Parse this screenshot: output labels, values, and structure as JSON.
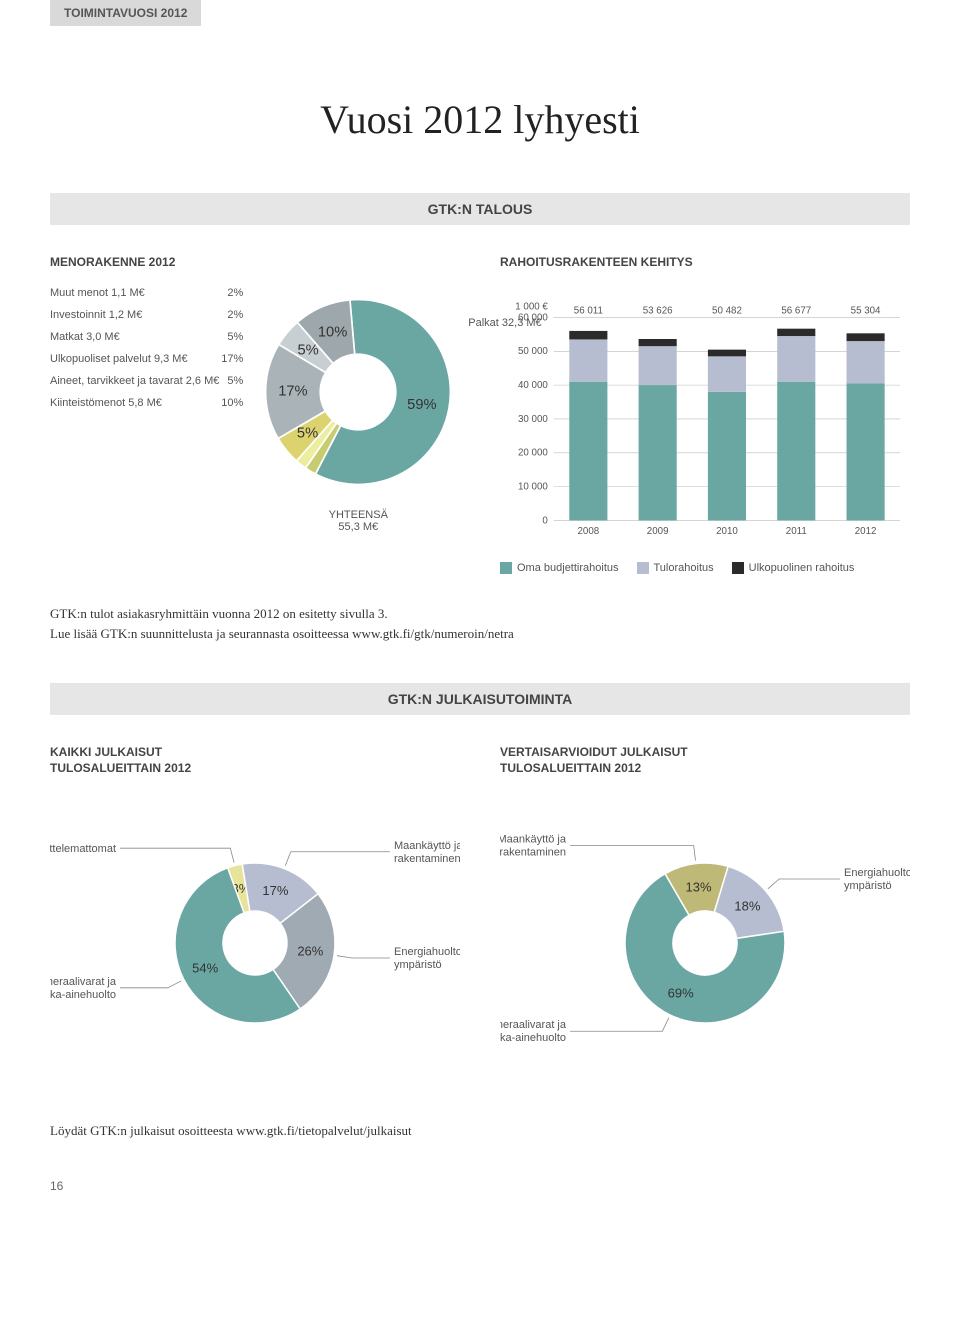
{
  "header_tab": "TOIMINTAVUOSI 2012",
  "title": "Vuosi 2012 lyhyesti",
  "section1_band": "GTK:N TALOUS",
  "menorakenne": {
    "heading": "MENORAKENNE 2012",
    "type": "pie",
    "items": [
      {
        "label": "Muut menot 1,1 M€",
        "pct": "2%",
        "color": "#c7cc70",
        "value": 2
      },
      {
        "label": "Investoinnit 1,2 M€",
        "pct": "2%",
        "color": "#eced9f",
        "value": 2
      },
      {
        "label": "Matkat 3,0 M€",
        "pct": "5%",
        "color": "#dcd36f",
        "value": 5
      },
      {
        "label": "Ulkopuoliset palvelut 9,3 M€",
        "pct": "17%",
        "color": "#aab4b8",
        "value": 17
      },
      {
        "label": "Aineet, tarvikkeet ja tavarat 2,6 M€",
        "pct": "5%",
        "color": "#c8cfd2",
        "value": 5
      },
      {
        "label": "Kiinteistömenot 5,8 M€",
        "pct": "10%",
        "color": "#9ea8ac",
        "value": 10
      }
    ],
    "main_slice": {
      "label": "Palkat 32,3 M€",
      "pct": "59%",
      "color": "#6aa6a2",
      "value": 59
    },
    "total_label": "YHTEENSÄ",
    "total_value": "55,3 M€",
    "background": "#ffffff"
  },
  "rahoitus": {
    "heading": "RAHOITUSRAKENTEEN KEHITYS",
    "type": "stacked-bar",
    "y_unit": "1 000 €",
    "ylim": [
      0,
      60000
    ],
    "ytick_step": 10000,
    "yticks": [
      "0",
      "10 000",
      "20 000",
      "30 000",
      "40 000",
      "50 000",
      "60 000"
    ],
    "categories": [
      "2008",
      "2009",
      "2010",
      "2011",
      "2012"
    ],
    "totals": [
      "56 011",
      "53 626",
      "50 482",
      "56 677",
      "55 304"
    ],
    "series": [
      {
        "name": "Oma budjettirahoitus",
        "color": "#6aa6a2",
        "values": [
          41000,
          40000,
          38000,
          41000,
          40500
        ]
      },
      {
        "name": "Tulorahoitus",
        "color": "#b7bdd1",
        "values": [
          12500,
          11500,
          10500,
          13500,
          12500
        ]
      },
      {
        "name": "Ulkopuolinen rahoitus",
        "color": "#2b2b2b",
        "values": [
          2511,
          2126,
          1982,
          2177,
          2304
        ]
      }
    ],
    "grid_color": "#bcbcbc",
    "background": "#ffffff",
    "label_fontsize": 10
  },
  "body_text1": "GTK:n tulot asiakasryhmittäin vuonna 2012 on esitetty sivulla 3.",
  "body_text2": "Lue lisää GTK:n suunnittelusta ja seurannasta osoitteessa www.gtk.fi/gtk/numeroin/netra",
  "section2_band": "GTK:N JULKAISUTOIMINTA",
  "pub_all": {
    "heading": "KAIKKI JULKAISUT",
    "subheading": "TULOSALUEITTAIN 2012",
    "type": "pie",
    "slices": [
      {
        "label": "Luokittelemattomat",
        "pct": "3%",
        "color": "#e7e49a",
        "value": 3
      },
      {
        "label": "Maankäyttö ja rakentaminen",
        "pct": "17%",
        "color": "#b7bdd1",
        "value": 17
      },
      {
        "label": "Energiahuolto ja ympäristö",
        "pct": "26%",
        "color": "#a0aab2",
        "value": 26
      },
      {
        "label": "Mineraalivarat ja raaka-ainehuolto",
        "pct": "54%",
        "color": "#6aa6a2",
        "value": 54
      }
    ]
  },
  "pub_peer": {
    "heading": "VERTAISARVIOIDUT JULKAISUT",
    "subheading": "TULOSALUEITTAIN 2012",
    "type": "pie",
    "slices": [
      {
        "label": "Maankäyttö ja rakentaminen",
        "pct": "13%",
        "color": "#bfb978",
        "value": 13
      },
      {
        "label": "Energiahuolto ja ympäristö",
        "pct": "18%",
        "color": "#b7bdd1",
        "value": 18
      },
      {
        "label": "Mineraalivarat ja raaka-ainehuolto",
        "pct": "69%",
        "color": "#6aa6a2",
        "value": 69
      }
    ]
  },
  "bottom_note": "Löydät GTK:n julkaisut osoitteesta www.gtk.fi/tietopalvelut/julkaisut",
  "page_num": "16"
}
